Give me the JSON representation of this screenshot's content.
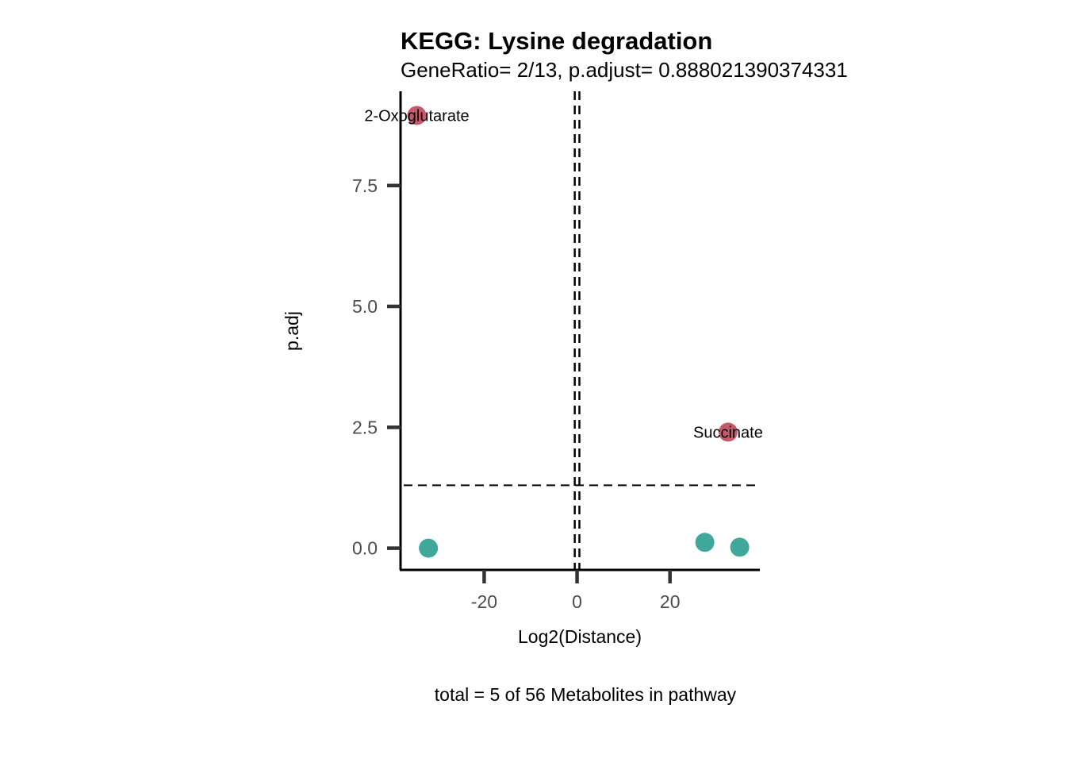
{
  "chart_data": {
    "type": "scatter",
    "title": "KEGG: Lysine degradation",
    "subtitle": "GeneRatio= 2/13, p.adjust= 0.888021390374331",
    "xlabel": "Log2(Distance)",
    "ylabel": "p.adj",
    "caption": "total = 5 of 56 Metabolites in pathway",
    "xlim": [
      -38,
      39
    ],
    "ylim": [
      -0.45,
      9.45
    ],
    "x_ticks": [
      -20,
      0,
      20
    ],
    "x_tick_labels": [
      "-20",
      "0",
      "20"
    ],
    "y_ticks": [
      0,
      2.5,
      5,
      7.5
    ],
    "y_tick_labels": [
      "0.0",
      "2.5",
      "5.0",
      "7.5"
    ],
    "reference_lines": {
      "vertical": [
        -0.5,
        0.5
      ],
      "horizontal": 1.3,
      "style": "dashed"
    },
    "colors": {
      "significant": "#c45a6a",
      "not_significant": "#3fa89a"
    },
    "points": [
      {
        "x": -34.5,
        "y": 8.95,
        "label": "2-Oxoglutarate",
        "significant": true
      },
      {
        "x": 32.5,
        "y": 2.4,
        "label": "Succinate",
        "significant": true
      },
      {
        "x": -32.0,
        "y": 0.0,
        "label": "",
        "significant": false
      },
      {
        "x": 27.5,
        "y": 0.12,
        "label": "",
        "significant": false
      },
      {
        "x": 35.0,
        "y": 0.02,
        "label": "",
        "significant": false
      }
    ]
  }
}
